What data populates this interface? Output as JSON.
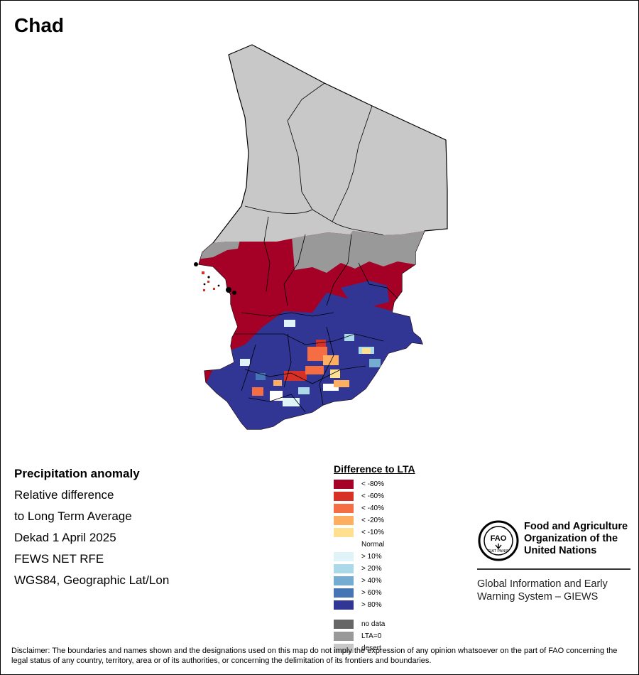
{
  "map": {
    "country": "Chad",
    "desert_color": "#c8c8c8",
    "boundary_color": "#000000"
  },
  "info": {
    "lines": [
      "Precipitation anomaly",
      "Relative difference",
      "to Long Term Average",
      "Dekad 1 April 2025",
      "FEWS NET RFE",
      "WGS84, Geographic Lat/Lon"
    ]
  },
  "legend": {
    "title": "Difference to LTA",
    "items": [
      {
        "label": "< -80%",
        "color": "#a50026"
      },
      {
        "label": "< -60%",
        "color": "#d73027"
      },
      {
        "label": "< -40%",
        "color": "#f46d43"
      },
      {
        "label": "< -20%",
        "color": "#fdae61"
      },
      {
        "label": "< -10%",
        "color": "#fee090"
      },
      {
        "label": "Normal",
        "color": "#ffffff"
      },
      {
        "label": "> 10%",
        "color": "#e0f3f8"
      },
      {
        "label": "> 20%",
        "color": "#abd9e9"
      },
      {
        "label": "> 40%",
        "color": "#74add1"
      },
      {
        "label": "> 60%",
        "color": "#4575b4"
      },
      {
        "label": "> 80%",
        "color": "#313695"
      }
    ],
    "extra": [
      {
        "label": "no data",
        "color": "#666666"
      },
      {
        "label": "LTA=0",
        "color": "#999999"
      },
      {
        "label": "desert",
        "color": "#c8c8c8"
      }
    ]
  },
  "logo": {
    "emblem_text": "FAO",
    "emblem_motto": "FIAT PANIS",
    "org_name": "Food and Agriculture Organization of the United Nations",
    "system_name": "Global Information and Early Warning System – GIEWS"
  },
  "disclaimer": "Disclaimer: The boundaries and names shown and the designations used on this map do not imply the expression of any opinion whatsoever on the part of FAO concerning the legal status of any country, territory, area or of its authorities, or concerning the delimitation of its frontiers and boundaries."
}
